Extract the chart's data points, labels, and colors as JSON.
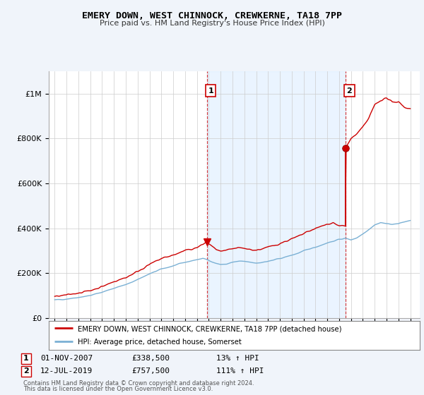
{
  "title": "EMERY DOWN, WEST CHINNOCK, CREWKERNE, TA18 7PP",
  "subtitle": "Price paid vs. HM Land Registry's House Price Index (HPI)",
  "background_color": "#f0f4fa",
  "plot_bg_color": "#ffffff",
  "red_line_color": "#cc0000",
  "blue_line_color": "#7ab0d4",
  "shade_color": "#ddeeff",
  "sale1_x": 2007.833,
  "sale1_y": 338500,
  "sale2_x": 2019.536,
  "sale2_y": 757500,
  "legend_red": "EMERY DOWN, WEST CHINNOCK, CREWKERNE, TA18 7PP (detached house)",
  "legend_blue": "HPI: Average price, detached house, Somerset",
  "footnote3": "Contains HM Land Registry data © Crown copyright and database right 2024.",
  "footnote4": "This data is licensed under the Open Government Licence v3.0.",
  "ylim": [
    0,
    1100000
  ],
  "xlim": [
    1994.5,
    2025.8
  ],
  "yticks": [
    0,
    200000,
    400000,
    600000,
    800000,
    1000000
  ],
  "ytick_labels": [
    "£0",
    "£200K",
    "£400K",
    "£600K",
    "£800K",
    "£1M"
  ],
  "xticks": [
    1995,
    1996,
    1997,
    1998,
    1999,
    2000,
    2001,
    2002,
    2003,
    2004,
    2005,
    2006,
    2007,
    2008,
    2009,
    2010,
    2011,
    2012,
    2013,
    2014,
    2015,
    2016,
    2017,
    2018,
    2019,
    2020,
    2021,
    2022,
    2023,
    2024,
    2025
  ]
}
